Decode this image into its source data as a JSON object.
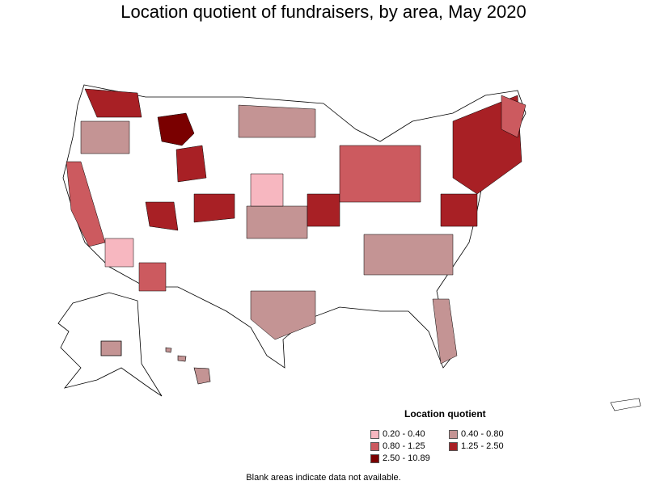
{
  "title": "Location quotient of fundraisers, by area, May 2020",
  "legend": {
    "title": "Location quotient",
    "items": [
      {
        "label": "0.20 - 0.40",
        "color": "#f7b7c0"
      },
      {
        "label": "0.40 - 0.80",
        "color": "#c49494"
      },
      {
        "label": "0.80 - 1.25",
        "color": "#cc5a5f"
      },
      {
        "label": "1.25 - 2.50",
        "color": "#a82025"
      },
      {
        "label": "2.50 - 10.89",
        "color": "#7a0000"
      }
    ]
  },
  "footnote": "Blank areas indicate data not available.",
  "colors": {
    "no_data": "#ffffff",
    "border": "#000000"
  }
}
